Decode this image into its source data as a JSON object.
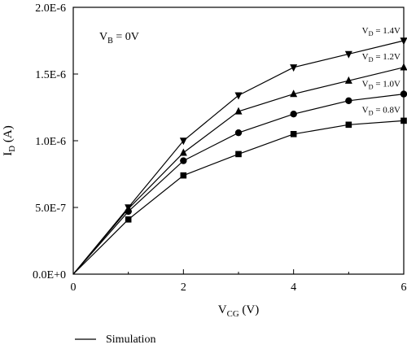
{
  "chart_data": {
    "type": "line",
    "xlabel": {
      "main": "V",
      "sub": "CG",
      "unit": " (V)"
    },
    "ylabel": {
      "main": "I",
      "sub": "D",
      "unit": " (A)"
    },
    "xlim": [
      0,
      6
    ],
    "ylim": [
      0,
      2e-06
    ],
    "x_ticks": [
      0,
      2,
      4,
      6
    ],
    "x_tick_labels": [
      "0",
      "2",
      "4",
      "6"
    ],
    "y_ticks": [
      0,
      5e-07,
      1e-06,
      1.5e-06,
      2e-06
    ],
    "y_tick_labels": [
      "0.0E+0",
      "5.0E-7",
      "1.0E-6",
      "1.5E-6",
      "2.0E-6"
    ],
    "grid": false,
    "annotation": {
      "main": "V",
      "sub": "B",
      "rest": " = 0V"
    },
    "x": [
      0,
      1,
      2,
      3,
      4,
      5,
      6
    ],
    "series": [
      {
        "label_main": "V",
        "label_sub": "D",
        "label_rest": " = 1.4V",
        "marker": "triangle-down",
        "values": [
          0,
          5e-07,
          1e-06,
          1.34e-06,
          1.55e-06,
          1.65e-06,
          1.75e-06
        ]
      },
      {
        "label_main": "V",
        "label_sub": "D",
        "label_rest": " = 1.2V",
        "marker": "triangle-up",
        "values": [
          0,
          4.9e-07,
          9.1e-07,
          1.22e-06,
          1.35e-06,
          1.45e-06,
          1.55e-06
        ]
      },
      {
        "label_main": "V",
        "label_sub": "D",
        "label_rest": " = 1.0V",
        "marker": "circle",
        "values": [
          0,
          4.7e-07,
          8.5e-07,
          1.06e-06,
          1.2e-06,
          1.3e-06,
          1.35e-06
        ]
      },
      {
        "label_main": "V",
        "label_sub": "D",
        "label_rest": " = 0.8V",
        "marker": "square",
        "values": [
          0,
          4.1e-07,
          7.4e-07,
          9e-07,
          1.05e-06,
          1.12e-06,
          1.15e-06
        ]
      }
    ],
    "legend": {
      "label": "Simulation",
      "placement": "bottom-left"
    }
  }
}
